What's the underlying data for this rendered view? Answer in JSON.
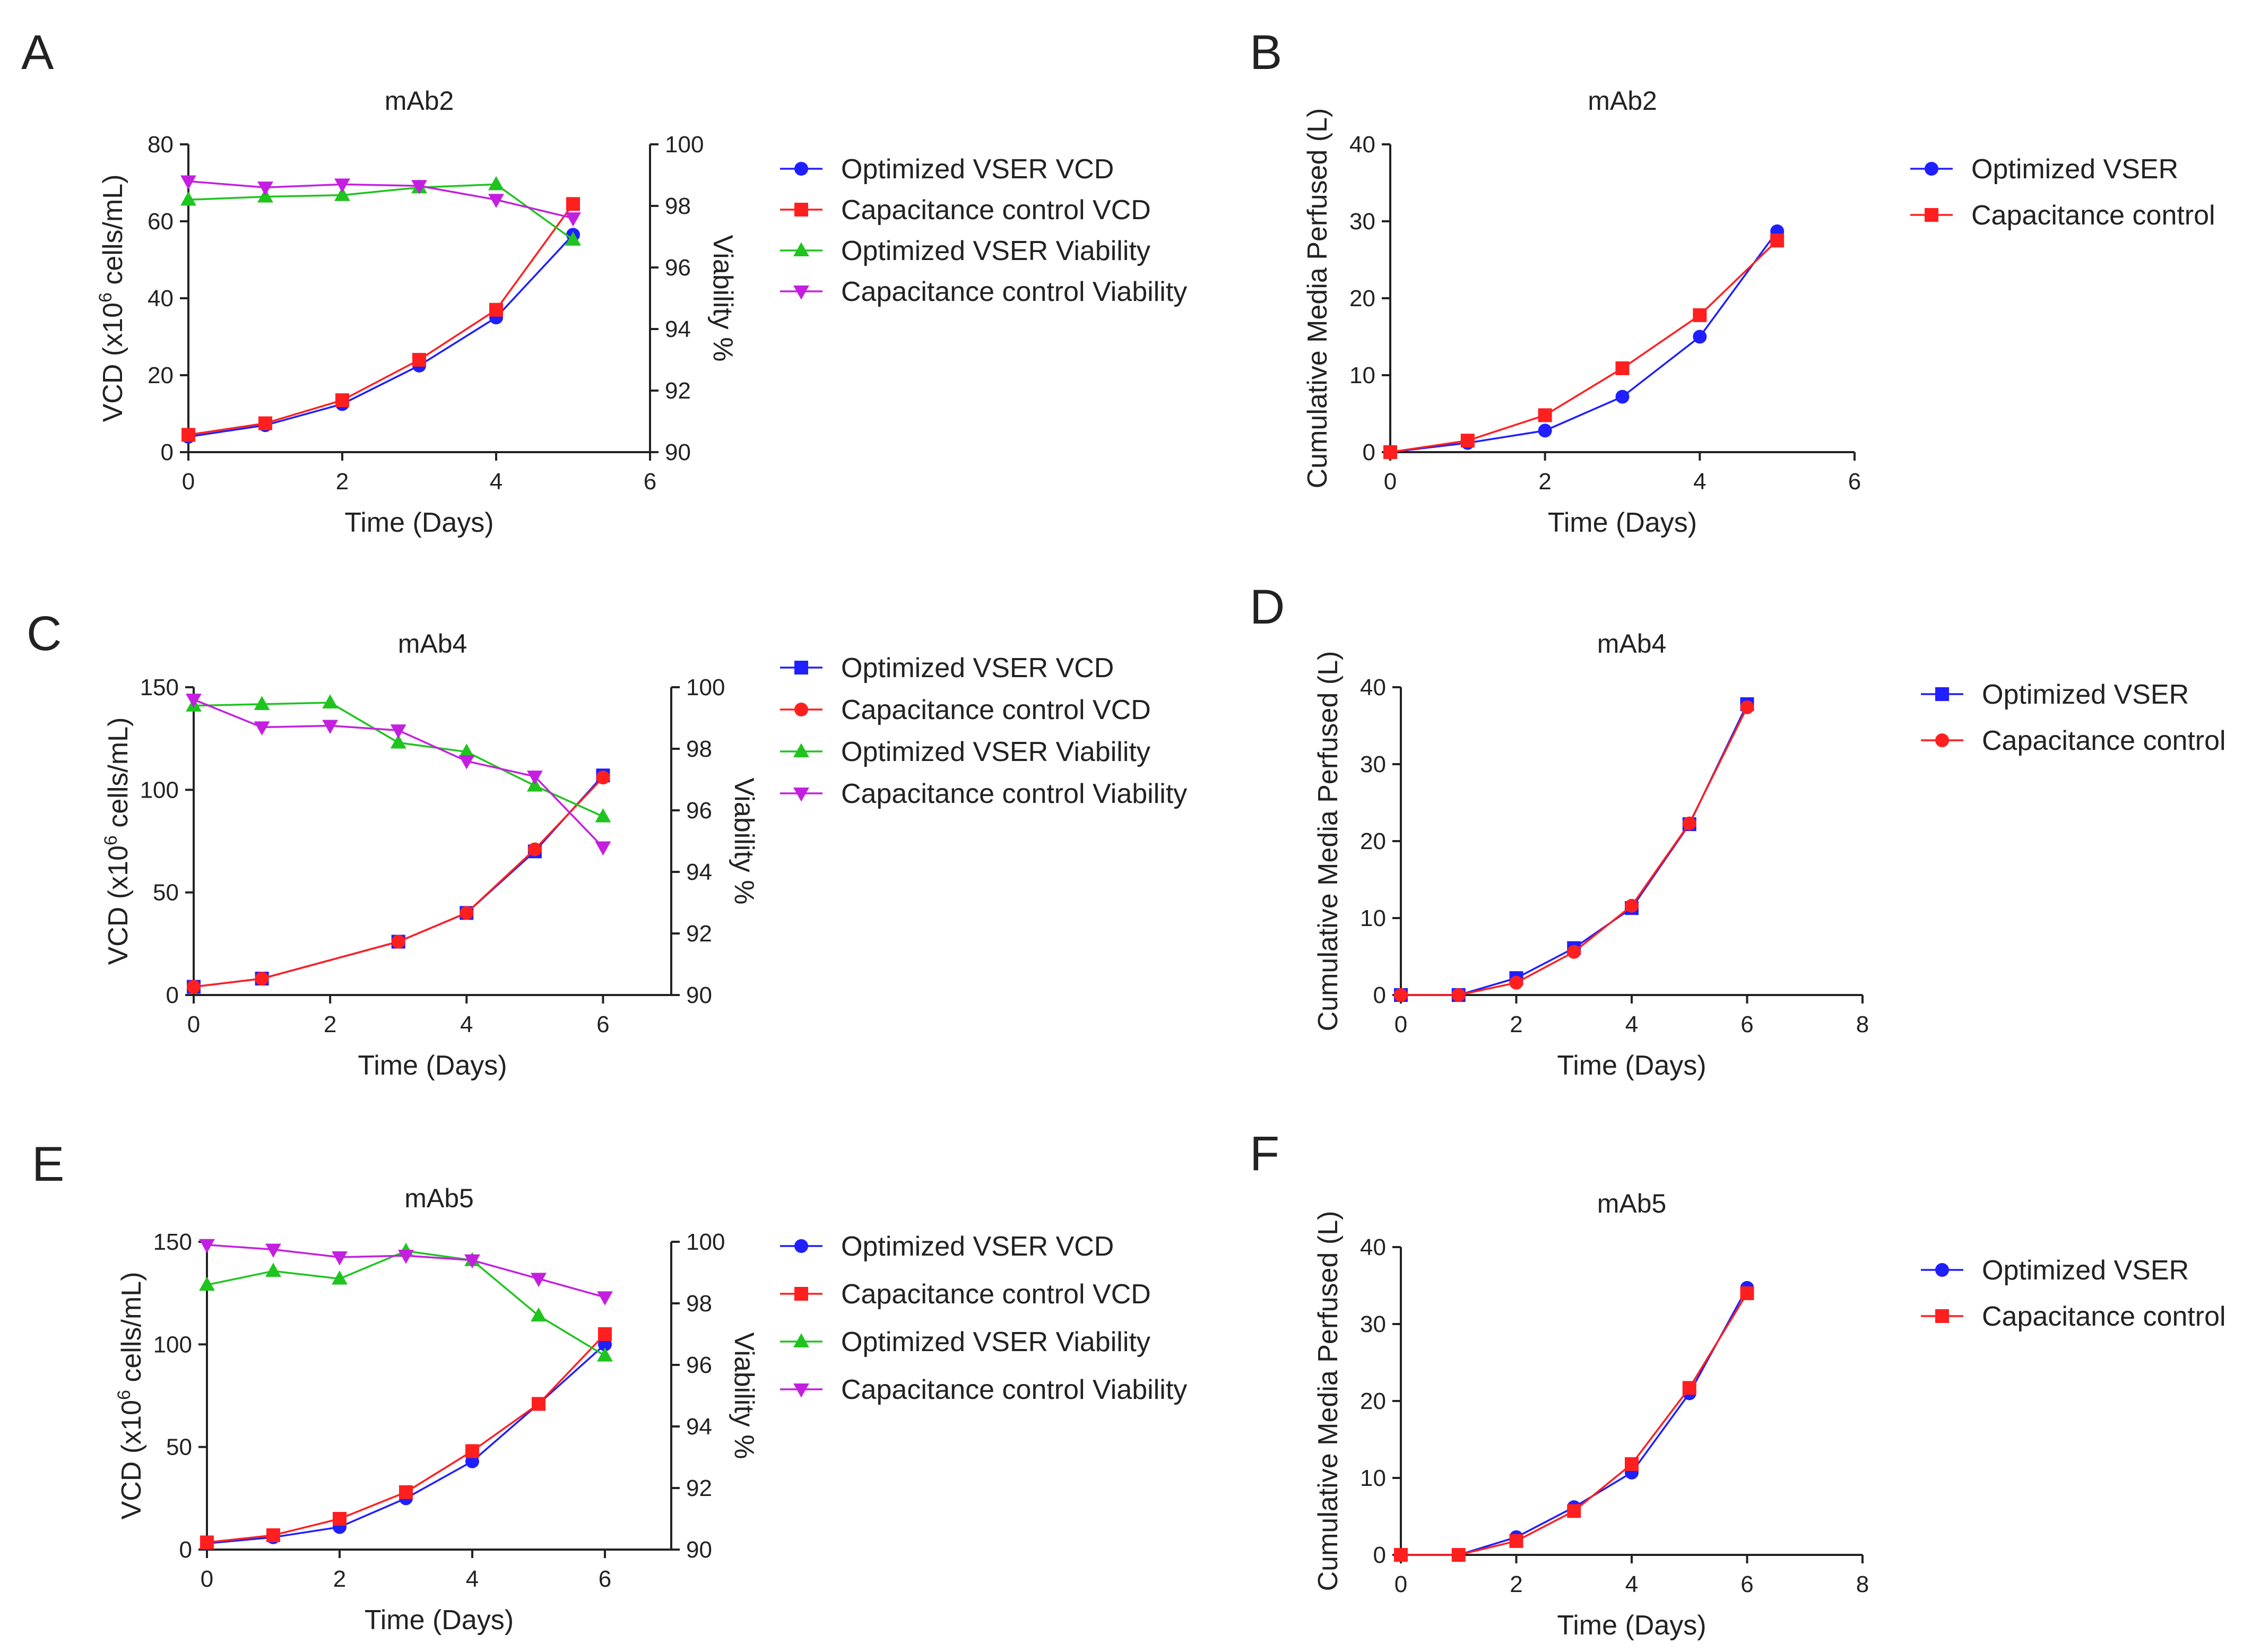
{
  "figure": {
    "description_free": true
  },
  "colors": {
    "blue": "#1f1fff",
    "red": "#ff1f1f",
    "green": "#1fc41f",
    "magenta": "#c41fe0",
    "axis": "#222222"
  },
  "chart_data": [
    {
      "panel": "A",
      "type": "line",
      "title": "mAb2",
      "dual_axis": true,
      "xlabel": "Time (Days)",
      "ylabel": "VCD (x10^6 cells/mL)",
      "y2label": "Viability %",
      "xlim": [
        0,
        6
      ],
      "xticks": [
        0,
        2,
        4,
        6
      ],
      "ylim": [
        0,
        80
      ],
      "yticks": [
        0,
        20,
        40,
        60,
        80
      ],
      "y2lim": [
        90,
        100
      ],
      "y2ticks": [
        90,
        92,
        94,
        96,
        98,
        100
      ],
      "legend_position": "right",
      "series": [
        {
          "name": "Optimized VSER VCD",
          "axis": "left",
          "marker": "circle",
          "color": "#1f1fff",
          "x": [
            0,
            1,
            2,
            3,
            4,
            5
          ],
          "values": [
            4,
            7,
            12.5,
            22.5,
            35,
            56.5
          ]
        },
        {
          "name": "Capacitance control VCD",
          "axis": "left",
          "marker": "square",
          "color": "#ff1f1f",
          "x": [
            0,
            1,
            2,
            3,
            4,
            5
          ],
          "values": [
            4.5,
            7.5,
            13.5,
            24,
            37,
            64.5
          ]
        },
        {
          "name": "Optimized VSER Viability",
          "axis": "right",
          "marker": "triangle-up",
          "color": "#1fc41f",
          "x": [
            0,
            1,
            2,
            3,
            4,
            5
          ],
          "values": [
            98.2,
            98.3,
            98.35,
            98.6,
            98.7,
            96.9
          ]
        },
        {
          "name": "Capacitance control Viability",
          "axis": "right",
          "marker": "triangle-down",
          "color": "#c41fe0",
          "x": [
            0,
            1,
            2,
            3,
            4,
            5
          ],
          "values": [
            98.8,
            98.6,
            98.7,
            98.65,
            98.2,
            97.6
          ]
        }
      ]
    },
    {
      "panel": "B",
      "type": "line",
      "title": "mAb2",
      "dual_axis": false,
      "xlabel": "Time (Days)",
      "ylabel": "Cumulative Media Perfused (L)",
      "xlim": [
        0,
        6
      ],
      "xticks": [
        0,
        2,
        4,
        6
      ],
      "ylim": [
        0,
        40
      ],
      "yticks": [
        0,
        10,
        20,
        30,
        40
      ],
      "legend_position": "right",
      "series": [
        {
          "name": "Optimized VSER",
          "marker": "circle",
          "color": "#1f1fff",
          "x": [
            0,
            1,
            2,
            3,
            4,
            5
          ],
          "values": [
            0,
            1.2,
            2.8,
            7.2,
            15,
            28.7
          ]
        },
        {
          "name": "Capacitance control",
          "marker": "square",
          "color": "#ff1f1f",
          "x": [
            0,
            1,
            2,
            3,
            4,
            5
          ],
          "values": [
            0,
            1.5,
            4.8,
            10.9,
            17.8,
            27.5
          ]
        }
      ]
    },
    {
      "panel": "C",
      "type": "line",
      "title": "mAb4",
      "dual_axis": true,
      "xlabel": "Time (Days)",
      "ylabel": "VCD (x10^6 cells/mL)",
      "y2label": "Viability %",
      "xlim": [
        0,
        7
      ],
      "xticks": [
        0,
        2,
        4,
        6
      ],
      "ylim": [
        0,
        150
      ],
      "yticks": [
        0,
        50,
        100,
        150
      ],
      "y2lim": [
        90,
        100
      ],
      "y2ticks": [
        90,
        92,
        94,
        96,
        98,
        100
      ],
      "legend_position": "right",
      "series": [
        {
          "name": "Optimized VSER VCD",
          "axis": "left",
          "marker": "square",
          "color": "#1f1fff",
          "x": [
            0,
            1,
            3,
            4,
            5,
            6
          ],
          "values": [
            4,
            8,
            26,
            40,
            70,
            107
          ]
        },
        {
          "name": "Capacitance control VCD",
          "axis": "left",
          "marker": "circle",
          "color": "#ff1f1f",
          "x": [
            0,
            1,
            3,
            4,
            5,
            6
          ],
          "values": [
            4,
            8,
            26,
            40,
            71,
            106
          ]
        },
        {
          "name": "Optimized VSER Viability",
          "axis": "right",
          "marker": "triangle-up",
          "color": "#1fc41f",
          "x": [
            0,
            1,
            2,
            3,
            4,
            5,
            6
          ],
          "values": [
            99.4,
            99.45,
            99.5,
            98.2,
            97.9,
            96.8,
            95.8
          ]
        },
        {
          "name": "Capacitance control Viability",
          "axis": "right",
          "marker": "triangle-down",
          "color": "#c41fe0",
          "x": [
            0,
            1,
            2,
            3,
            4,
            5,
            6
          ],
          "values": [
            99.6,
            98.7,
            98.75,
            98.6,
            97.6,
            97.1,
            94.8
          ]
        }
      ]
    },
    {
      "panel": "D",
      "type": "line",
      "title": "mAb4",
      "dual_axis": false,
      "xlabel": "Time (Days)",
      "ylabel": "Cumulative Media Perfused (L)",
      "xlim": [
        0,
        8
      ],
      "xticks": [
        0,
        2,
        4,
        6,
        8
      ],
      "ylim": [
        0,
        40
      ],
      "yticks": [
        0,
        10,
        20,
        30,
        40
      ],
      "legend_position": "right",
      "series": [
        {
          "name": "Optimized VSER",
          "marker": "square",
          "color": "#1f1fff",
          "x": [
            0,
            1,
            2,
            3,
            4,
            5,
            6
          ],
          "values": [
            0,
            0,
            2.2,
            6.1,
            11.3,
            22.2,
            37.8
          ]
        },
        {
          "name": "Capacitance control",
          "marker": "circle",
          "color": "#ff1f1f",
          "x": [
            0,
            1,
            2,
            3,
            4,
            5,
            6
          ],
          "values": [
            0,
            0,
            1.6,
            5.6,
            11.6,
            22.3,
            37.4
          ]
        }
      ]
    },
    {
      "panel": "E",
      "type": "line",
      "title": "mAb5",
      "dual_axis": true,
      "xlabel": "Time (Days)",
      "ylabel": "VCD (x10^6 cells/mL)",
      "y2label": "Viability %",
      "xlim": [
        0,
        7
      ],
      "xticks": [
        0,
        2,
        4,
        6
      ],
      "ylim": [
        0,
        150
      ],
      "yticks": [
        0,
        50,
        100,
        150
      ],
      "y2lim": [
        90,
        100
      ],
      "y2ticks": [
        90,
        92,
        94,
        96,
        98,
        100
      ],
      "legend_position": "right",
      "series": [
        {
          "name": "Optimized VSER VCD",
          "axis": "left",
          "marker": "circle",
          "color": "#1f1fff",
          "x": [
            0,
            1,
            2,
            3,
            4,
            5,
            6
          ],
          "values": [
            3,
            6,
            11,
            25,
            43,
            71,
            100
          ]
        },
        {
          "name": "Capacitance control VCD",
          "axis": "left",
          "marker": "square",
          "color": "#ff1f1f",
          "x": [
            0,
            1,
            2,
            3,
            4,
            5,
            6
          ],
          "values": [
            3.5,
            7,
            15,
            28,
            48,
            71,
            105
          ]
        },
        {
          "name": "Optimized VSER Viability",
          "axis": "right",
          "marker": "triangle-up",
          "color": "#1fc41f",
          "x": [
            0,
            1,
            2,
            3,
            4,
            5,
            6
          ],
          "values": [
            98.6,
            99.05,
            98.8,
            99.7,
            99.4,
            97.6,
            96.3
          ]
        },
        {
          "name": "Capacitance control Viability",
          "axis": "right",
          "marker": "triangle-down",
          "color": "#c41fe0",
          "x": [
            0,
            1,
            2,
            3,
            4,
            5,
            6
          ],
          "values": [
            99.9,
            99.75,
            99.5,
            99.55,
            99.4,
            98.8,
            98.2
          ]
        }
      ]
    },
    {
      "panel": "F",
      "type": "line",
      "title": "mAb5",
      "dual_axis": false,
      "xlabel": "Time (Days)",
      "ylabel": "Cumulative Media Perfused (L)",
      "xlim": [
        0,
        8
      ],
      "xticks": [
        0,
        2,
        4,
        6,
        8
      ],
      "ylim": [
        0,
        40
      ],
      "yticks": [
        0,
        10,
        20,
        30,
        40
      ],
      "legend_position": "right",
      "series": [
        {
          "name": "Optimized VSER",
          "marker": "circle",
          "color": "#1f1fff",
          "x": [
            0,
            1,
            2,
            3,
            4,
            5,
            6
          ],
          "values": [
            0,
            0,
            2.3,
            6.2,
            10.7,
            21,
            34.7
          ]
        },
        {
          "name": "Capacitance control",
          "marker": "square",
          "color": "#ff1f1f",
          "x": [
            0,
            1,
            2,
            3,
            4,
            5,
            6
          ],
          "values": [
            0,
            0,
            1.8,
            5.7,
            11.8,
            21.7,
            34
          ]
        }
      ]
    }
  ]
}
